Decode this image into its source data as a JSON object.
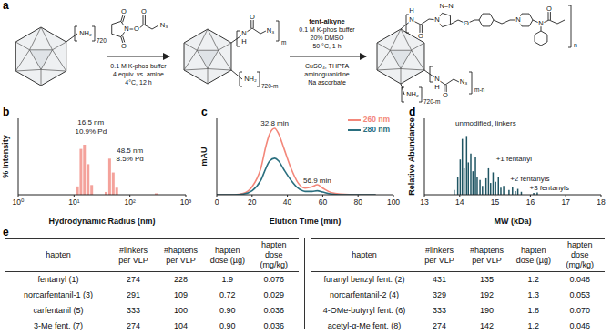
{
  "panel_labels": [
    "a",
    "b",
    "c",
    "d",
    "e"
  ],
  "scheme": {
    "start": {
      "group": "NH₂",
      "count": "720"
    },
    "step1": {
      "reagent_atoms": [
        "O",
        "N",
        "O",
        "O",
        "O",
        "N₃"
      ],
      "conditions": [
        "0.1 M K-phos buffer",
        "4 equiv. vs. amine",
        "4°C, 12 h"
      ]
    },
    "intermediate": {
      "linker_atoms": [
        "N",
        "H",
        "O",
        "N₃"
      ],
      "linker_count": "m",
      "amine": "NH₂",
      "amine_count": "720-m"
    },
    "step2": {
      "reagent": "fent-alkyne",
      "conditions": [
        "0.1 M K-phos buffer",
        "20% DMSO",
        "50 °C, 1 h",
        "CuSO₄, THPTA",
        "aminoguanidine",
        "Na ascorbate"
      ]
    },
    "product": {
      "hapten_atoms": [
        "H",
        "N",
        "O",
        "N",
        "N=N",
        "O",
        "N",
        "N",
        "O"
      ],
      "hapten_count": "n",
      "linker_atoms": [
        "N",
        "H",
        "O",
        "N₃"
      ],
      "linker_count": "m-n",
      "amine": "NH₂",
      "amine_count": "720-m"
    }
  },
  "chart_data": [
    {
      "type": "bar",
      "x_label": "Hydrodynamic Radius (nm)",
      "y_label": "% Intensity",
      "x": [
        11.7,
        13.5,
        15.6,
        18.1,
        21,
        38,
        44,
        51,
        59,
        300
      ],
      "values": [
        6,
        33,
        36,
        22,
        7,
        2,
        26,
        16,
        5,
        1
      ],
      "color": "#f4a29b",
      "log": "x",
      "xlim": [
        1,
        1000
      ],
      "xticks": [
        {
          "value": 1,
          "label": "10⁰"
        },
        {
          "value": 10,
          "label": "10¹"
        },
        {
          "value": 100,
          "label": "10²"
        },
        {
          "value": 1000,
          "label": "10³"
        }
      ],
      "ylim": [
        0,
        55
      ],
      "tick_labels": "x",
      "annotations": [
        {
          "text": "16.5 nm",
          "x": 20,
          "y": 52
        },
        {
          "text": "10.9% Pd",
          "x": 20,
          "y": 46
        },
        {
          "text": "48.5 nm",
          "x": 100,
          "y": 32
        },
        {
          "text": "8.5% Pd",
          "x": 100,
          "y": 26
        }
      ]
    },
    {
      "type": "line",
      "x_label": "Elution Time (min)",
      "y_label": "mAU",
      "x": [
        0,
        10,
        15,
        20,
        25,
        28,
        30,
        32.8,
        35,
        38,
        42,
        46,
        50,
        54,
        56.9,
        60,
        65,
        70,
        80,
        90
      ],
      "series": [
        {
          "name": "260 nm",
          "color": "#f3877a",
          "line_style": "solid",
          "values": [
            0,
            0,
            2,
            12,
            40,
            75,
            92,
            100,
            92,
            70,
            40,
            18,
            10,
            12,
            15,
            10,
            3,
            1,
            0,
            0
          ]
        },
        {
          "name": "280 nm",
          "color": "#2a6f7f",
          "line_style": "solid",
          "values": [
            0,
            0,
            1,
            6,
            22,
            41,
            51,
            55,
            51,
            38,
            22,
            10,
            5,
            5,
            6,
            4,
            1,
            0,
            0,
            0
          ]
        }
      ],
      "xlim": [
        0,
        100
      ],
      "xticks": [
        0,
        20,
        40,
        60,
        80,
        100
      ],
      "ylim": [
        0,
        115
      ],
      "tick_labels": "x",
      "legend": "upper right",
      "annotations": [
        {
          "text": "32.8 min",
          "x": 32.8,
          "y": 108
        },
        {
          "text": "56.9 min",
          "x": 56.9,
          "y": 22
        }
      ]
    },
    {
      "type": "bar",
      "x_label": "MW (kDa)",
      "y_label": "Relative Abundance",
      "x": [
        13.85,
        13.95,
        14.02,
        14.08,
        14.13,
        14.2,
        14.25,
        14.32,
        14.38,
        14.45,
        14.5,
        14.58,
        14.65,
        14.75,
        14.82,
        14.88,
        14.95,
        15.02,
        15.1,
        15.17,
        15.25,
        15.4,
        15.5,
        15.58,
        15.65,
        15.75,
        16.1,
        16.2
      ],
      "values": [
        8,
        30,
        60,
        95,
        45,
        100,
        55,
        70,
        40,
        65,
        30,
        25,
        15,
        28,
        45,
        20,
        38,
        22,
        30,
        12,
        15,
        8,
        14,
        6,
        10,
        5,
        3,
        4
      ],
      "color": "#1f5563",
      "xlim": [
        13,
        18
      ],
      "xticks": [
        13,
        14,
        15,
        16,
        17,
        18
      ],
      "ylim": [
        0,
        130
      ],
      "tick_labels": "x",
      "annotations": [
        {
          "text": "unmodified, linkers",
          "x": 13.8,
          "y": 122
        },
        {
          "text": "+1 fentanyl",
          "x": 14.95,
          "y": 62
        },
        {
          "text": "+2 fentanyls",
          "x": 15.35,
          "y": 28
        },
        {
          "text": "+3 fentanyls",
          "x": 15.9,
          "y": 12
        }
      ]
    }
  ],
  "table": {
    "columns": [
      "hapten",
      "#linkers per VLP",
      "#haptens per VLP",
      "hapten dose (µg)",
      "hapten dose (mg/kg)"
    ],
    "halves": [
      [
        [
          "fentanyl (1)",
          "274",
          "228",
          "1.9",
          "0.076"
        ],
        [
          "norcarfentanil-1 (3)",
          "291",
          "109",
          "0.72",
          "0.029"
        ],
        [
          "carfentanil (5)",
          "333",
          "100",
          "0.90",
          "0.036"
        ],
        [
          "3-Me fent. (7)",
          "274",
          "104",
          "0.90",
          "0.036"
        ]
      ],
      [
        [
          "furanyl benzyl fent. (2)",
          "431",
          "135",
          "1.2",
          "0.048"
        ],
        [
          "norcarfentanil-2 (4)",
          "329",
          "192",
          "1.3",
          "0.053"
        ],
        [
          "4-OMe-butyryl fent. (6)",
          "333",
          "190",
          "1.8",
          "0.070"
        ],
        [
          "acetyl-α-Me fent. (8)",
          "274",
          "142",
          "1.2",
          "0.046"
        ]
      ]
    ]
  }
}
